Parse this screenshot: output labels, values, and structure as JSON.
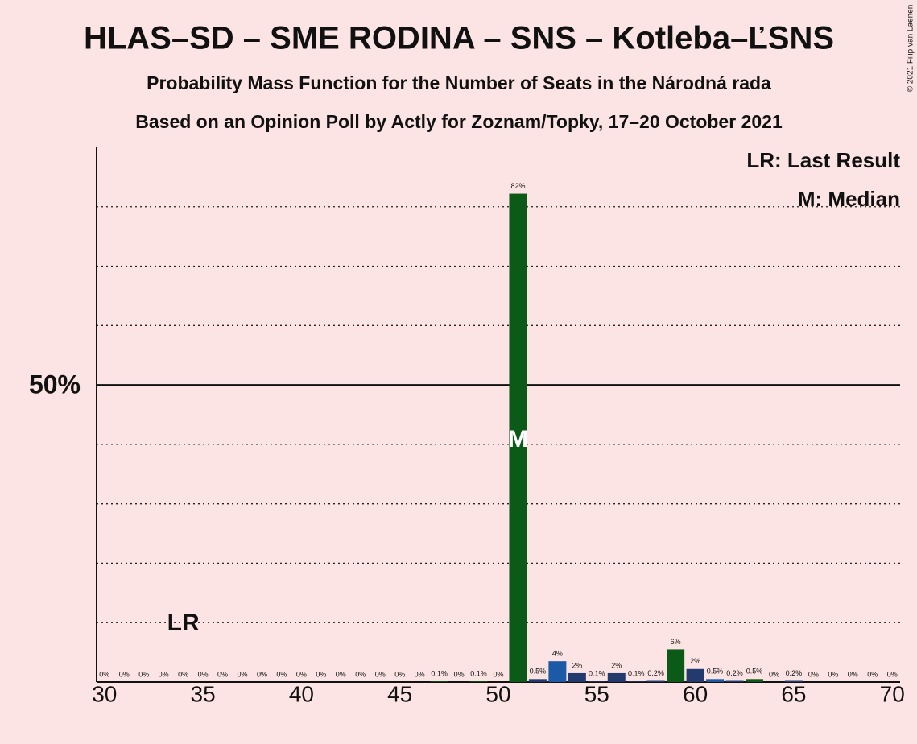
{
  "chart_data": {
    "type": "bar",
    "title": "HLAS–SD – SME RODINA – SNS – Kotleba–ĽSNS",
    "subtitle": "Probability Mass Function for the Number of Seats in the Národná rada",
    "subtitle2": "Based on an Opinion Poll by Actly for Zoznam/Topky, 17–20 October 2021",
    "copyright": "© 2021 Filip van Laenen",
    "legend": [
      "LR: Last Result",
      "M: Median"
    ],
    "last_result": {
      "x": 34,
      "label": "LR"
    },
    "median": {
      "x": 51,
      "label": "M"
    },
    "x": [
      30,
      31,
      32,
      33,
      34,
      35,
      36,
      37,
      38,
      39,
      40,
      41,
      42,
      43,
      44,
      45,
      46,
      47,
      48,
      49,
      50,
      51,
      52,
      53,
      54,
      55,
      56,
      57,
      58,
      59,
      60,
      61,
      62,
      63,
      64,
      65,
      66,
      67,
      68,
      69,
      70
    ],
    "values": [
      0,
      0,
      0,
      0,
      0,
      0,
      0,
      0,
      0,
      0,
      0,
      0,
      0,
      0,
      0,
      0,
      0,
      0.1,
      0,
      0.1,
      0,
      82.2,
      0.5,
      3.5,
      1.5,
      0.1,
      1.5,
      0.1,
      0.2,
      5.5,
      2.2,
      0.5,
      0.2,
      0.5,
      0,
      0.2,
      0,
      0,
      0,
      0,
      0
    ],
    "value_labels": [
      "0%",
      "0%",
      "0%",
      "0%",
      "0%",
      "0%",
      "0%",
      "0%",
      "0%",
      "0%",
      "0%",
      "0%",
      "0%",
      "0%",
      "0%",
      "0%",
      "0%",
      "0.1%",
      "0%",
      "0.1%",
      "0%",
      "82%",
      "0.5%",
      "4%",
      "2%",
      "0.1%",
      "2%",
      "0.1%",
      "0.2%",
      "6%",
      "2%",
      "0.5%",
      "0.2%",
      "0.5%",
      "0%",
      "0.2%",
      "0%",
      "0%",
      "0%",
      "0%",
      "0%"
    ],
    "colors": [
      "#0b5a18",
      "#0b5a18",
      "#0b5a18",
      "#0b5a18",
      "#0b5a18",
      "#0b5a18",
      "#0b5a18",
      "#0b5a18",
      "#0b5a18",
      "#0b5a18",
      "#0b5a18",
      "#0b5a18",
      "#0b5a18",
      "#0b5a18",
      "#0b5a18",
      "#0b5a18",
      "#0b5a18",
      "#0b5a18",
      "#0b5a18",
      "#0b5a18",
      "#0b5a18",
      "#0b5a18",
      "#233a6e",
      "#1d5aa6",
      "#233a6e",
      "#233a6e",
      "#233a6e",
      "#233a6e",
      "#233a6e",
      "#0b5a18",
      "#233a6e",
      "#1d5aa6",
      "#233a6e",
      "#0b5a18",
      "#233a6e",
      "#233a6e",
      "#233a6e",
      "#233a6e",
      "#233a6e",
      "#233a6e",
      "#233a6e"
    ],
    "xlim": [
      29.6,
      70.4
    ],
    "xticks": [
      30,
      35,
      40,
      45,
      50,
      55,
      60,
      65,
      70
    ],
    "ylim": [
      0,
      90
    ],
    "yticks": [
      {
        "value": 50,
        "label": "50%"
      }
    ],
    "grid_lines": [
      10,
      20,
      30,
      40,
      60,
      70,
      80
    ]
  }
}
